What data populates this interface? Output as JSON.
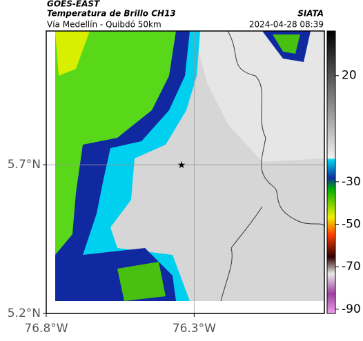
{
  "header": {
    "title": "GOES-EAST",
    "subtitle": "Temperatura de Brillo CH13",
    "source": "SIATA",
    "route": "Vía Medellín - Quibdó 50km",
    "datetime": "2024-04-28 08:39"
  },
  "map": {
    "lonlim": [
      -76.8,
      -75.86
    ],
    "latlim": [
      5.2,
      6.15
    ],
    "xticks": [
      {
        "value": -76.8,
        "label": "76.8°W"
      },
      {
        "value": -76.3,
        "label": "76.3°W"
      }
    ],
    "yticks": [
      {
        "value": 5.7,
        "label": "5.7°N"
      },
      {
        "value": 5.2,
        "label": "5.2°N"
      }
    ],
    "colorbar": {
      "lim": [
        -92,
        41
      ],
      "ticks": [
        20,
        -30,
        -50,
        -70,
        -90
      ]
    }
  }
}
